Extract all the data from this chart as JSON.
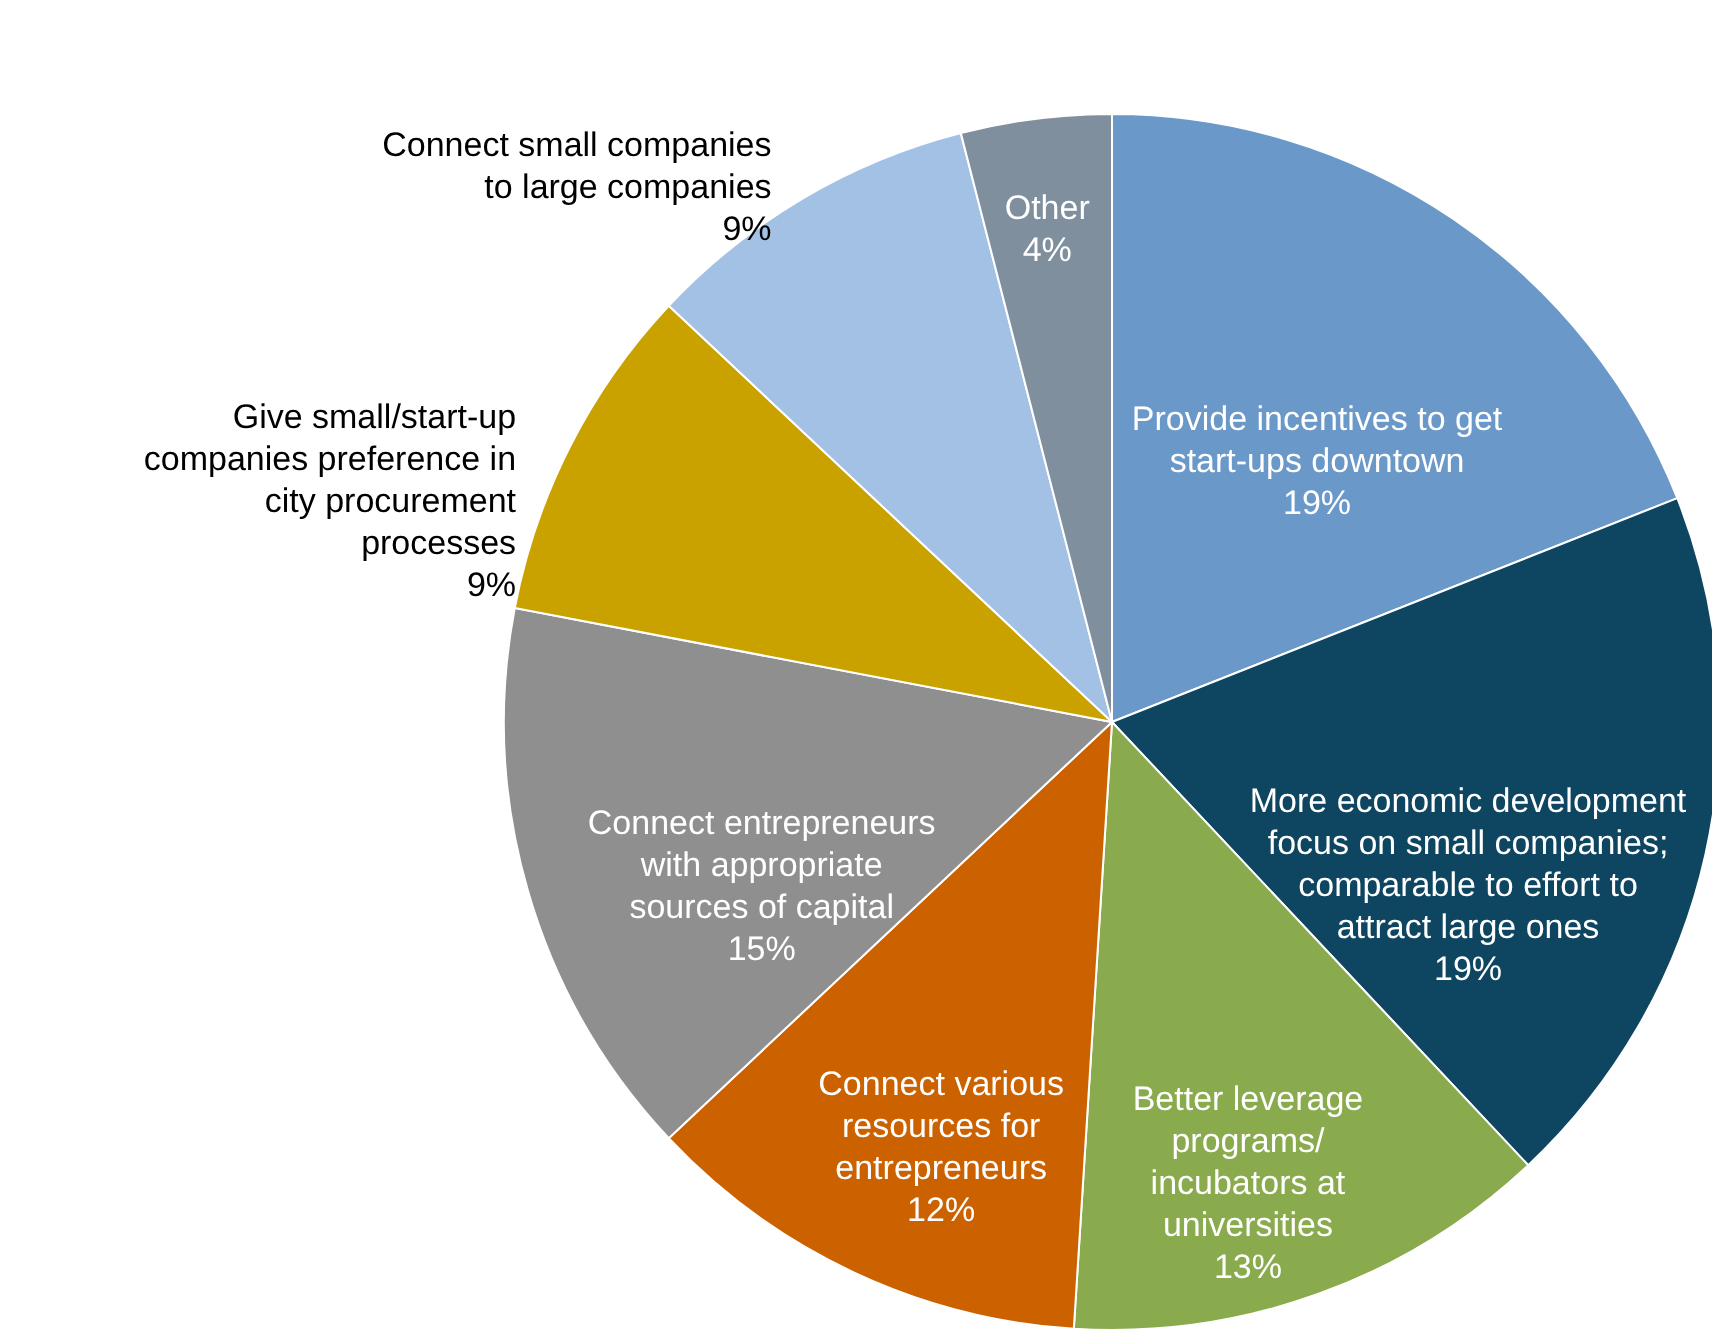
{
  "chart_data": {
    "type": "pie",
    "categories": [
      "Provide incentives to get start-ups downtown",
      "More economic development focus on small companies; comparable to effort to attract large ones",
      "Better leverage programs/ incubators at universities",
      "Connect various resources for entrepreneurs",
      "Connect entrepreneurs with appropriate sources of capital",
      "Give small/start-up companies preference in city procurement processes",
      "Connect small companies to large companies",
      "Other"
    ],
    "values": [
      19,
      19,
      13,
      12,
      15,
      9,
      9,
      4
    ],
    "value_labels": [
      "19%",
      "19%",
      "13%",
      "12%",
      "15%",
      "9%",
      "9%",
      "4%"
    ],
    "colors": [
      "#6a98c8",
      "#0e4560",
      "#8aaa4e",
      "#cc6100",
      "#8f8f8f",
      "#c9a200",
      "#a3c1e4",
      "#7f8f9e"
    ]
  }
}
